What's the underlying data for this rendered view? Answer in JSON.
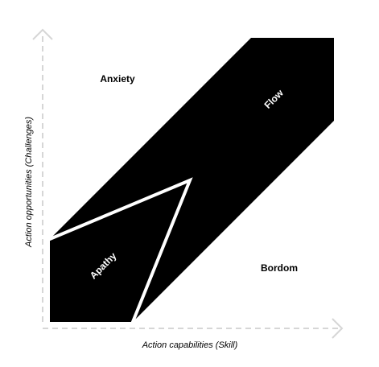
{
  "diagram": {
    "x_axis_label": "Action capabilities (Skill)",
    "y_axis_label": "Action opportunities (Challenges)",
    "regions": {
      "anxiety": "Anxiety",
      "flow": "Flow",
      "apathy": "Apathy",
      "boredom": "Bordom"
    },
    "colors": {
      "flow_band": "#000000",
      "apathy_outline": "#ffffff",
      "axis": "#d6d6d6",
      "label_dark": "#000000",
      "label_light": "#ffffff"
    }
  }
}
